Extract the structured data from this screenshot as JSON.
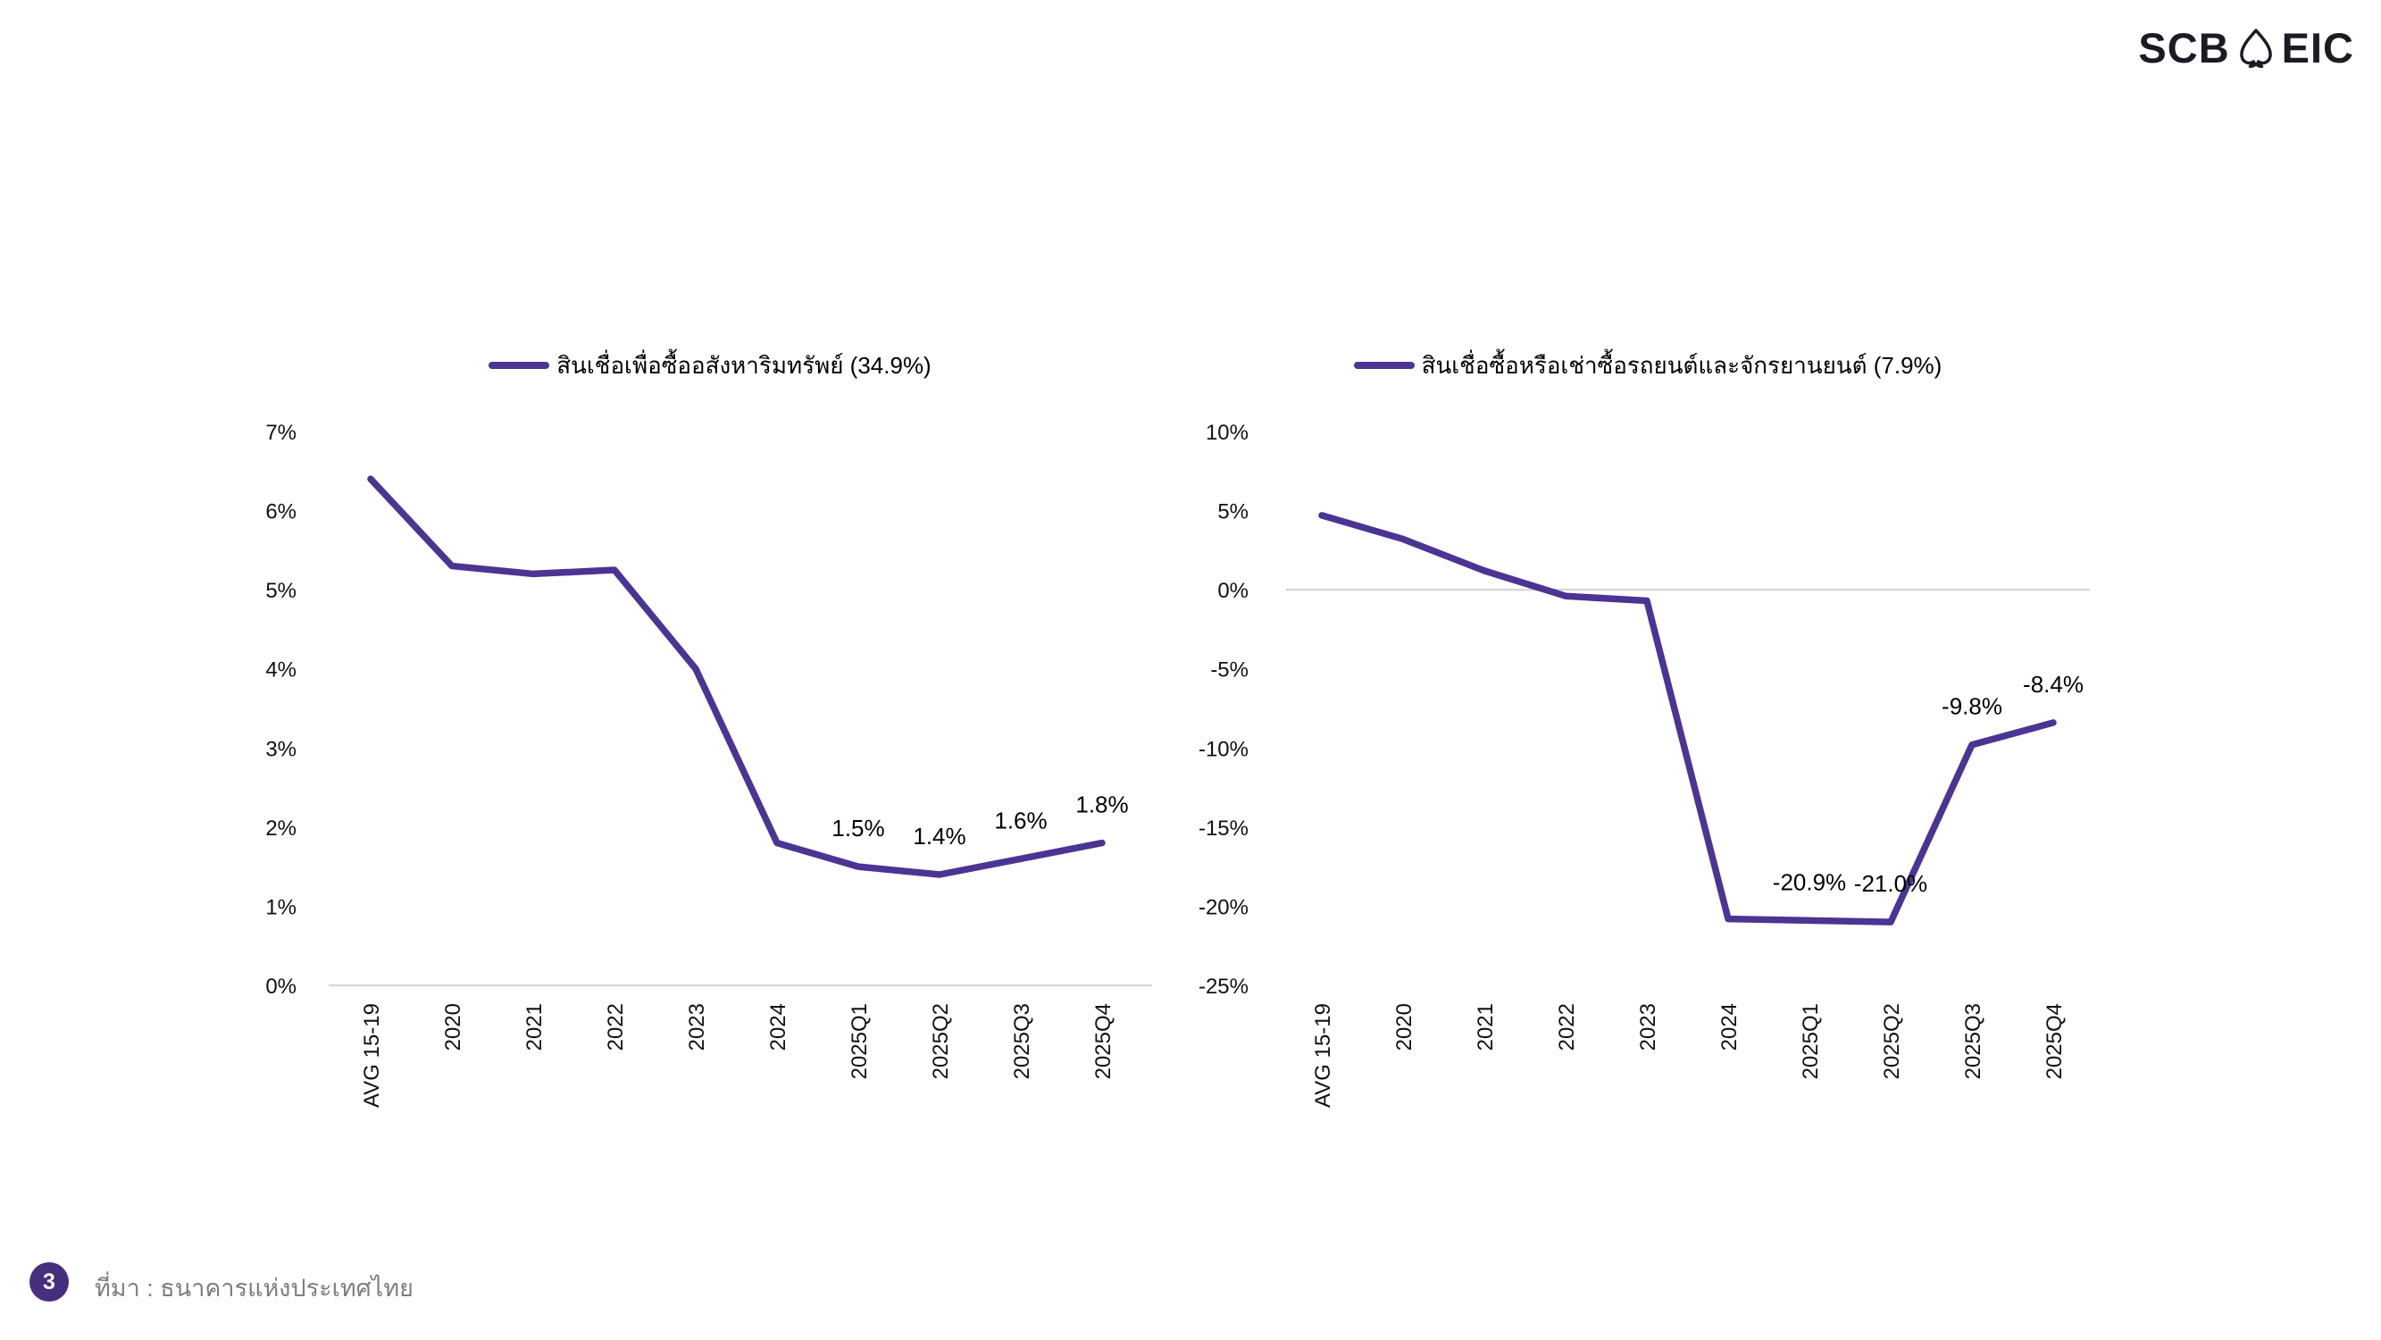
{
  "header": {
    "logo": {
      "left": "SCB",
      "right": "EIC",
      "icon": "bodhi-leaf"
    }
  },
  "footer": {
    "page_number": "3",
    "source_text": "ที่มา : ธนาคารแห่งประเทศไทย"
  },
  "colors": {
    "line": "#4B3493",
    "badge": "#472F7C",
    "logo": "#1B1B24",
    "grid": "#D8D8D8",
    "source_text": "#7E7E82"
  },
  "chart_data": [
    {
      "type": "line",
      "title": "",
      "legend": "สินเชื่อเพื่อซื้ออสังหาริมทรัพย์ (34.9%)",
      "legend_position": "top",
      "categories": [
        "AVG 15-19",
        "2020",
        "2021",
        "2022",
        "2023",
        "2024",
        "2025Q1",
        "2025Q2",
        "2025Q3",
        "2025Q4"
      ],
      "values": [
        6.4,
        5.3,
        5.2,
        5.25,
        4.0,
        1.8,
        1.5,
        1.4,
        1.6,
        1.8
      ],
      "point_labels": [
        "",
        "",
        "",
        "",
        "",
        "",
        "1.5%",
        "1.4%",
        "1.6%",
        "1.8%"
      ],
      "xlabel": "",
      "ylabel": "",
      "ylim": [
        0,
        7
      ],
      "y_ticks": [
        {
          "value": 7,
          "label": "7%"
        },
        {
          "value": 6,
          "label": "6%"
        },
        {
          "value": 5,
          "label": "5%"
        },
        {
          "value": 4,
          "label": "4%"
        },
        {
          "value": 3,
          "label": "3%"
        },
        {
          "value": 2,
          "label": "2%"
        },
        {
          "value": 1,
          "label": "1%"
        },
        {
          "value": 0,
          "label": "0%"
        }
      ],
      "grid": "zero-line-only",
      "x_label_rotation": -90
    },
    {
      "type": "line",
      "title": "",
      "legend": "สินเชื่อซื้อหรือเช่าซื้อรถยนต์และจักรยานยนต์ (7.9%)",
      "legend_position": "top",
      "categories": [
        "AVG 15-19",
        "2020",
        "2021",
        "2022",
        "2023",
        "2024",
        "2025Q1",
        "2025Q2",
        "2025Q3",
        "2025Q4"
      ],
      "values": [
        4.7,
        3.2,
        1.2,
        -0.4,
        -0.7,
        -20.8,
        -20.9,
        -21.0,
        -9.8,
        -8.4
      ],
      "point_labels": [
        "",
        "",
        "",
        "",
        "",
        "",
        "-20.9%",
        "-21.0%",
        "-9.8%",
        "-8.4%"
      ],
      "xlabel": "",
      "ylabel": "",
      "ylim": [
        -25,
        10
      ],
      "y_ticks": [
        {
          "value": 10,
          "label": "10%"
        },
        {
          "value": 5,
          "label": "5%"
        },
        {
          "value": 0,
          "label": "0%"
        },
        {
          "value": -5,
          "label": "-5%"
        },
        {
          "value": -10,
          "label": "-10%"
        },
        {
          "value": -15,
          "label": "-15%"
        },
        {
          "value": -20,
          "label": "-20%"
        },
        {
          "value": -25,
          "label": "-25%"
        }
      ],
      "grid": "zero-line-only",
      "x_label_rotation": -90
    }
  ]
}
